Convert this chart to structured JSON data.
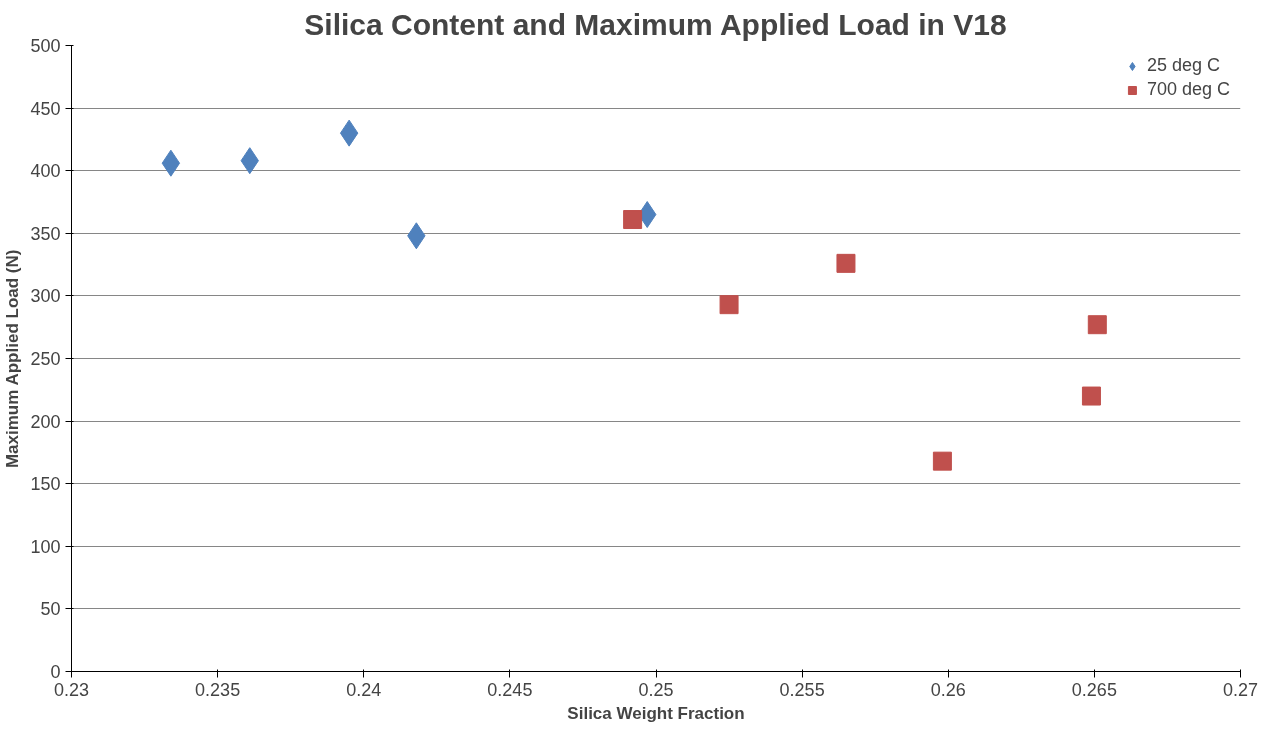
{
  "chart_data": {
    "type": "scatter",
    "title": "Silica Content and Maximum Applied Load in V18",
    "xlabel": "Silica Weight Fraction",
    "ylabel": "Maximum Applied Load (N)",
    "series": [
      {
        "name": "25 deg C",
        "color": "#4f81bd",
        "marker": "diamond",
        "x": [
          0.2334,
          0.2361,
          0.2395,
          0.2418,
          0.2497
        ],
        "values": [
          406,
          408,
          430,
          348,
          365
        ]
      },
      {
        "name": "700 deg C",
        "color": "#c0504d",
        "marker": "square",
        "x": [
          0.2492,
          0.2525,
          0.2565,
          0.2598,
          0.2649,
          0.2651
        ],
        "values": [
          361,
          293,
          326,
          168,
          220,
          277
        ]
      }
    ],
    "xlim": [
      0.23,
      0.27
    ],
    "xticks": [
      0.23,
      0.235,
      0.24,
      0.245,
      0.25,
      0.255,
      0.26,
      0.265,
      0.27
    ],
    "ylim": [
      0,
      500
    ],
    "yticks": [
      0,
      50,
      100,
      150,
      200,
      250,
      300,
      350,
      400,
      450,
      500
    ],
    "grid": "y",
    "legend": "top right"
  }
}
